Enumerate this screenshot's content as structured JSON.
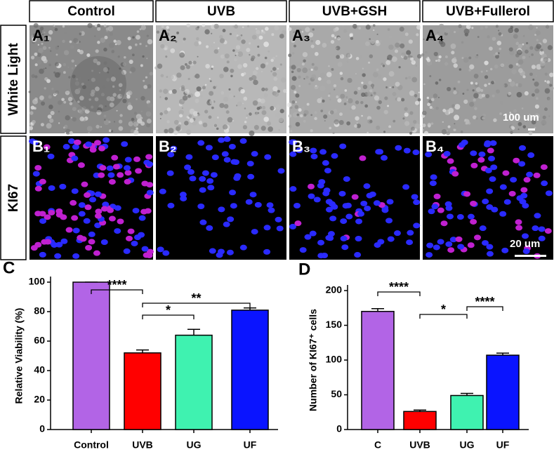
{
  "headers": [
    "Control",
    "UVB",
    "UVB+GSH",
    "UVB+Fullerol"
  ],
  "row_labels": [
    "White Light",
    "KI67"
  ],
  "panel_labels": {
    "A": [
      "A₁",
      "A₂",
      "A₃",
      "A₄"
    ],
    "B": [
      "B₁",
      "B₂",
      "B₃",
      "B₄"
    ]
  },
  "scale_bars": [
    "100 um",
    "20 um"
  ],
  "chart_data": [
    {
      "type": "bar",
      "panel_label": "C",
      "ylabel": "Relative Viability (%)",
      "categories": [
        "Control",
        "UVB",
        "UG",
        "UF"
      ],
      "series": [
        {
          "values": [
            100,
            52,
            64,
            81
          ],
          "errors": [
            0,
            2,
            4,
            1.5
          ],
          "colors": [
            "#b264e6",
            "#ff0000",
            "#3ff2b0",
            "#0a14ff"
          ]
        }
      ],
      "ylim": [
        0,
        100
      ],
      "yticks": [
        0,
        20,
        40,
        60,
        80,
        100
      ],
      "annotations": [
        {
          "text": "****",
          "from": 0,
          "to": 1
        },
        {
          "text": "*",
          "from": 1,
          "to": 2
        },
        {
          "text": "**",
          "from": 1,
          "to": 3
        }
      ]
    },
    {
      "type": "bar",
      "panel_label": "D",
      "ylabel": "Number of KI67⁺ cells",
      "categories": [
        "C",
        "UVB",
        "UG",
        "UF"
      ],
      "series": [
        {
          "values": [
            170,
            26,
            49,
            107
          ],
          "errors": [
            4,
            2,
            3,
            3
          ],
          "colors": [
            "#b264e6",
            "#ff0000",
            "#3ff2b0",
            "#0a14ff"
          ]
        }
      ],
      "ylim": [
        0,
        200
      ],
      "yticks": [
        0,
        50,
        100,
        150,
        200
      ],
      "annotations": [
        {
          "text": "****",
          "from": 0,
          "to": 1
        },
        {
          "text": "*",
          "from": 1,
          "to": 2
        },
        {
          "text": "****",
          "from": 2,
          "to": 3
        }
      ]
    }
  ]
}
